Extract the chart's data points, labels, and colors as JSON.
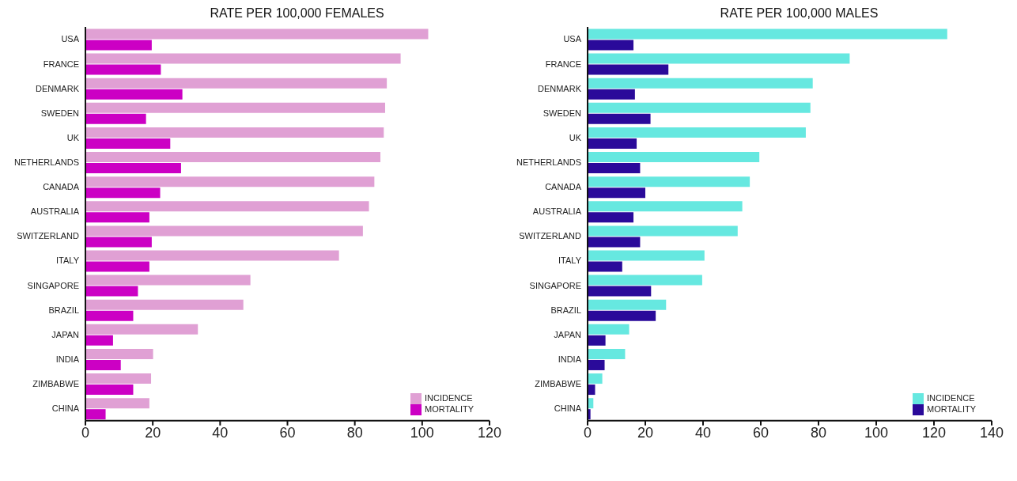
{
  "chart_data": [
    {
      "type": "bar",
      "orientation": "horizontal",
      "title": "RATE PER 100,000 FEMALES",
      "categories": [
        "USA",
        "FRANCE",
        "DENMARK",
        "SWEDEN",
        "UK",
        "NETHERLANDS",
        "CANADA",
        "AUSTRALIA",
        "SWITZERLAND",
        "ITALY",
        "SINGAPORE",
        "BRAZIL",
        "JAPAN",
        "INDIA",
        "ZIMBABWE",
        "CHINA"
      ],
      "series": [
        {
          "name": "INCIDENCE",
          "color": "#e0a0d4",
          "values": [
            101.8,
            93.6,
            89.5,
            89,
            88.6,
            87.6,
            85.8,
            84.2,
            82.4,
            75.3,
            49,
            46.9,
            33.4,
            20.1,
            19.5,
            19
          ]
        },
        {
          "name": "MORTALITY",
          "color": "#cc00c4",
          "values": [
            19.7,
            22.4,
            28.8,
            18,
            25.2,
            28.4,
            22.2,
            19,
            19.7,
            19,
            15.6,
            14.2,
            8.2,
            10.5,
            14.2,
            6
          ]
        }
      ],
      "xlim": [
        0,
        120
      ],
      "xticks": [
        0,
        20,
        40,
        60,
        80,
        100,
        120
      ],
      "legend": "bottom right",
      "grid": false
    },
    {
      "type": "bar",
      "orientation": "horizontal",
      "title": "RATE PER 100,000 MALES",
      "categories": [
        "USA",
        "FRANCE",
        "DENMARK",
        "SWEDEN",
        "UK",
        "NETHERLANDS",
        "CANADA",
        "AUSTRALIA",
        "SWITZERLAND",
        "ITALY",
        "SINGAPORE",
        "BRAZIL",
        "JAPAN",
        "INDIA",
        "ZIMBABWE",
        "CHINA"
      ],
      "series": [
        {
          "name": "INCIDENCE",
          "color": "#66e8e0",
          "values": [
            124.6,
            90.8,
            78,
            77.2,
            75.6,
            59.5,
            56.2,
            53.6,
            52,
            40.5,
            39.7,
            27.2,
            14.4,
            13,
            5.1,
            2
          ]
        },
        {
          "name": "MORTALITY",
          "color": "#2a0a9a",
          "values": [
            15.9,
            28,
            16.4,
            21.8,
            17,
            18.2,
            20,
            15.9,
            18.2,
            12,
            22,
            23.6,
            6.2,
            5.9,
            2.6,
            1
          ]
        }
      ],
      "xlim": [
        0,
        140
      ],
      "xticks": [
        0,
        20,
        40,
        60,
        80,
        100,
        120,
        140
      ],
      "legend": "bottom right",
      "grid": false
    }
  ]
}
